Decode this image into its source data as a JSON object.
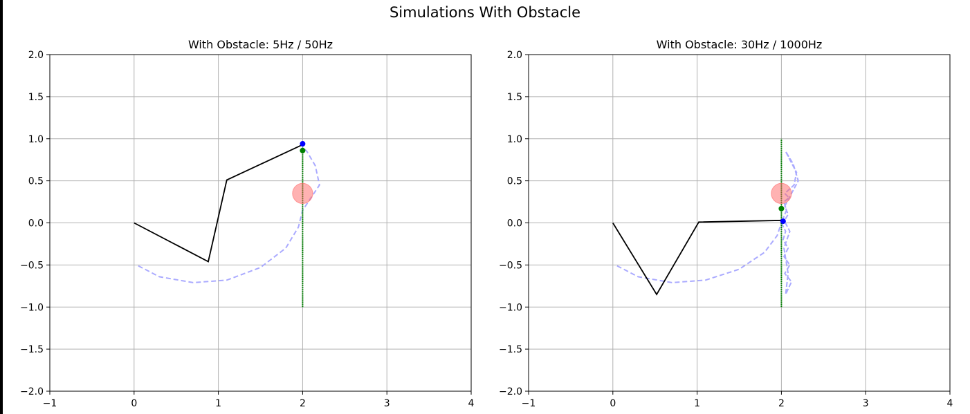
{
  "figure": {
    "title": "Simulations With Obstacle"
  },
  "chart_data": [
    {
      "type": "line",
      "title": "With Obstacle: 5Hz / 50Hz",
      "xlabel": "",
      "ylabel": "",
      "xlim": [
        -1,
        4
      ],
      "ylim": [
        -2,
        2
      ],
      "grid": true,
      "xticks": [
        -1,
        0,
        1,
        2,
        3,
        4
      ],
      "yticks": [
        -2.0,
        -1.5,
        -1.0,
        -0.5,
        0.0,
        0.5,
        1.0,
        1.5,
        2.0
      ],
      "xtick_labels": [
        "−1",
        "0",
        "1",
        "2",
        "3",
        "4"
      ],
      "ytick_labels": [
        "−2.0",
        "−1.5",
        "−1.0",
        "−0.5",
        "0.0",
        "0.5",
        "1.0",
        "1.5",
        "2.0"
      ],
      "arm": {
        "color": "#000000",
        "x": [
          0,
          0.88,
          1.1,
          2.0
        ],
        "y": [
          0,
          -0.46,
          0.51,
          0.93
        ]
      },
      "trajectory": {
        "color": "#aaaaff",
        "style": "dashed",
        "x": [
          0.05,
          0.3,
          0.7,
          1.1,
          1.5,
          1.8,
          1.95,
          2.0,
          2.1,
          2.2,
          2.15,
          2.05,
          2.0
        ],
        "y": [
          -0.51,
          -0.64,
          -0.71,
          -0.68,
          -0.53,
          -0.3,
          -0.05,
          0.15,
          0.3,
          0.45,
          0.68,
          0.85,
          0.9
        ]
      },
      "target_line": {
        "color": "#008000",
        "style": "dotted",
        "x": [
          2.0,
          2.0
        ],
        "y": [
          -1.0,
          0.9
        ]
      },
      "obstacle": {
        "color": "#ff6666",
        "x": 2.0,
        "y": 0.35,
        "r": 0.12
      },
      "target_point": {
        "color": "#008000",
        "x": 2.0,
        "y": 0.86
      },
      "effector_point": {
        "color": "#0000ff",
        "x": 2.0,
        "y": 0.94
      }
    },
    {
      "type": "line",
      "title": "With Obstacle: 30Hz / 1000Hz",
      "xlabel": "",
      "ylabel": "",
      "xlim": [
        -1,
        4
      ],
      "ylim": [
        -2,
        2
      ],
      "grid": true,
      "xticks": [
        -1,
        0,
        1,
        2,
        3,
        4
      ],
      "yticks": [
        -2.0,
        -1.5,
        -1.0,
        -0.5,
        0.0,
        0.5,
        1.0,
        1.5,
        2.0
      ],
      "xtick_labels": [
        "−1",
        "0",
        "1",
        "2",
        "3",
        "4"
      ],
      "ytick_labels": [
        "−2.0",
        "−1.5",
        "−1.0",
        "−0.5",
        "0.0",
        "0.5",
        "1.0",
        "1.5",
        "2.0"
      ],
      "arm": {
        "color": "#000000",
        "x": [
          0,
          0.52,
          1.02,
          2.02
        ],
        "y": [
          0,
          -0.85,
          0.01,
          0.03
        ]
      },
      "trajectory": {
        "color": "#aaaaff",
        "style": "dashed",
        "x": [
          0.05,
          0.3,
          0.7,
          1.1,
          1.5,
          1.8,
          1.95,
          2.0
        ],
        "y": [
          -0.51,
          -0.64,
          -0.71,
          -0.68,
          -0.55,
          -0.35,
          -0.15,
          0.0
        ]
      },
      "oscillation": {
        "color": "#aaaaff",
        "x": [
          2.0,
          2.05,
          2.02,
          2.08,
          2.03,
          2.1,
          2.04,
          2.12,
          2.05,
          2.08,
          2.03,
          2.1,
          2.02,
          2.06,
          2.03,
          2.09,
          2.04,
          2.15,
          2.18,
          2.1,
          2.05,
          2.14,
          2.2,
          2.12,
          2.04,
          2.08,
          2.02
        ],
        "y": [
          0.0,
          -0.1,
          -0.2,
          -0.3,
          -0.4,
          -0.5,
          -0.6,
          -0.7,
          -0.85,
          -0.6,
          -0.3,
          -0.1,
          0.05,
          0.15,
          0.25,
          0.3,
          0.35,
          0.45,
          0.6,
          0.75,
          0.85,
          0.7,
          0.5,
          0.35,
          0.2,
          0.1,
          0.0
        ]
      },
      "target_line": {
        "color": "#008000",
        "style": "dotted",
        "x": [
          2.0,
          2.0
        ],
        "y": [
          -1.0,
          1.0
        ]
      },
      "obstacle": {
        "color": "#ff6666",
        "x": 2.0,
        "y": 0.35,
        "r": 0.12
      },
      "target_point": {
        "color": "#008000",
        "x": 2.0,
        "y": 0.17
      },
      "effector_point": {
        "color": "#0000ff",
        "x": 2.02,
        "y": 0.02
      }
    }
  ]
}
